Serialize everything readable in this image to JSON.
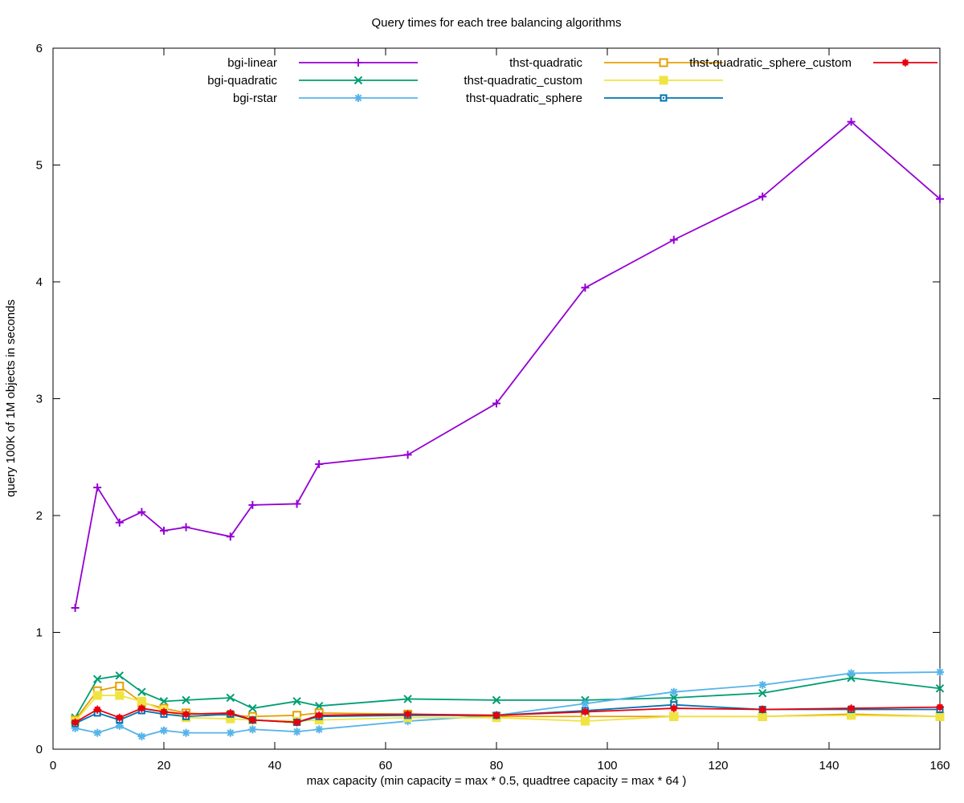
{
  "title": "Query times for each tree balancing algorithms",
  "chart_data": {
    "type": "line",
    "title": "Query times for each tree balancing algorithms",
    "xlabel": "max capacity (min capacity = max * 0.5, quadtree capacity = max * 64 )",
    "ylabel": "query 100K of 1M objects in seconds",
    "xlim": [
      0,
      160
    ],
    "ylim": [
      0,
      6
    ],
    "xticks": [
      0,
      20,
      40,
      60,
      80,
      100,
      120,
      140,
      160
    ],
    "yticks": [
      0,
      1,
      2,
      3,
      4,
      5,
      6
    ],
    "grid": false,
    "legend_position": "top-inside",
    "legend_columns": 3,
    "x": [
      4,
      8,
      12,
      16,
      20,
      24,
      32,
      36,
      44,
      48,
      64,
      80,
      96,
      112,
      128,
      144,
      160
    ],
    "series": [
      {
        "name": "bgi-linear",
        "color": "#9400d3",
        "marker": "plus",
        "values": [
          1.21,
          2.24,
          1.94,
          2.03,
          1.87,
          1.9,
          1.82,
          2.09,
          2.1,
          2.44,
          2.52,
          2.96,
          3.95,
          4.36,
          4.73,
          5.37,
          4.71
        ]
      },
      {
        "name": "bgi-quadratic",
        "color": "#009e73",
        "marker": "cross",
        "values": [
          0.27,
          0.6,
          0.63,
          0.49,
          0.41,
          0.42,
          0.44,
          0.35,
          0.41,
          0.37,
          0.43,
          0.42,
          0.42,
          0.44,
          0.48,
          0.61,
          0.52
        ]
      },
      {
        "name": "bgi-rstar",
        "color": "#56b4e9",
        "marker": "asterisk",
        "values": [
          0.18,
          0.14,
          0.2,
          0.11,
          0.16,
          0.14,
          0.14,
          0.17,
          0.15,
          0.17,
          0.24,
          0.29,
          0.39,
          0.49,
          0.55,
          0.65,
          0.66
        ]
      },
      {
        "name": "thst-quadratic",
        "color": "#e69f00",
        "marker": "open-square",
        "values": [
          0.25,
          0.5,
          0.54,
          0.4,
          0.35,
          0.31,
          0.29,
          0.28,
          0.29,
          0.31,
          0.3,
          0.28,
          0.28,
          0.28,
          0.28,
          0.3,
          0.28
        ]
      },
      {
        "name": "thst-quadratic_custom",
        "color": "#f0e442",
        "marker": "filled-square",
        "values": [
          0.24,
          0.46,
          0.46,
          0.41,
          0.33,
          0.27,
          0.26,
          0.25,
          0.24,
          0.25,
          0.27,
          0.27,
          0.24,
          0.28,
          0.28,
          0.29,
          0.28
        ]
      },
      {
        "name": "thst-quadratic_sphere",
        "color": "#0072b2",
        "marker": "open-square-dot",
        "values": [
          0.22,
          0.31,
          0.25,
          0.33,
          0.3,
          0.28,
          0.3,
          0.25,
          0.23,
          0.28,
          0.29,
          0.29,
          0.33,
          0.38,
          0.34,
          0.34,
          0.34
        ]
      },
      {
        "name": "thst-quadratic_sphere_custom",
        "color": "#e8000d",
        "marker": "filled-square-small",
        "values": [
          0.23,
          0.34,
          0.27,
          0.35,
          0.32,
          0.3,
          0.31,
          0.25,
          0.23,
          0.29,
          0.3,
          0.29,
          0.32,
          0.35,
          0.34,
          0.35,
          0.36
        ]
      }
    ]
  }
}
